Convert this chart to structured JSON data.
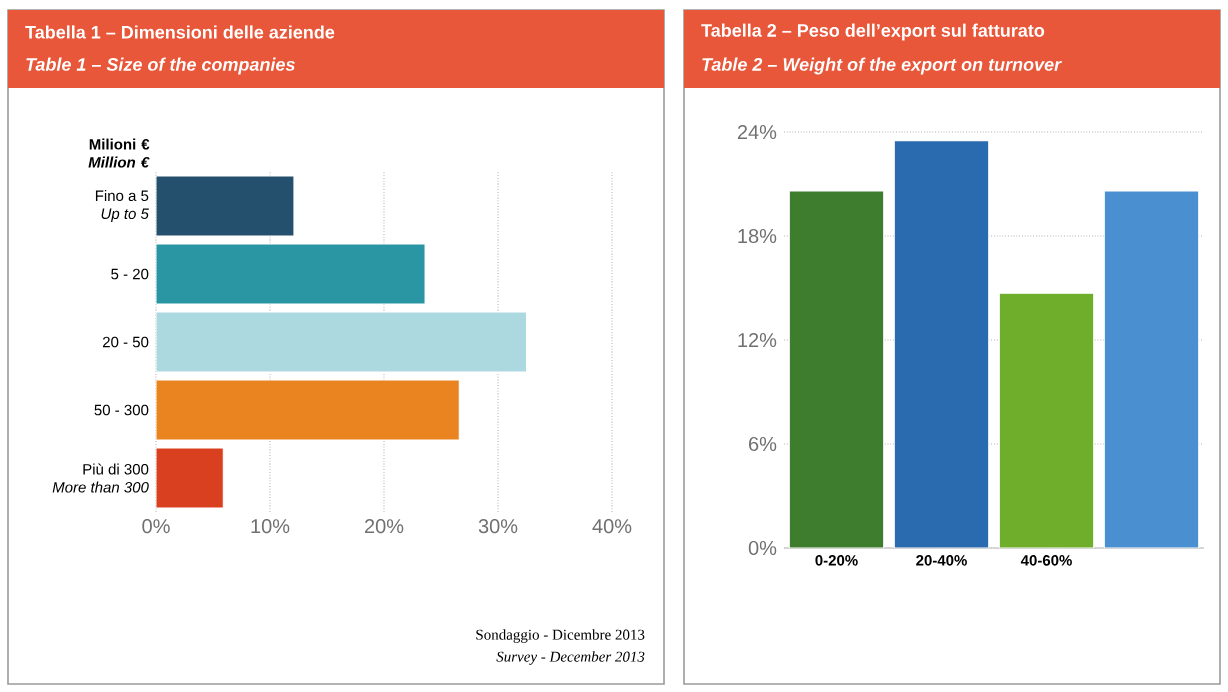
{
  "chart_data": [
    {
      "type": "bar",
      "orientation": "horizontal",
      "title": "Tabella 1 – Dimensioni delle aziende",
      "subtitle": "*Table 1 – Size of the companies*",
      "ylabel": "Milioni € *Million €*",
      "categories": [
        "Fino a 5 *Up to 5*",
        "5 - 20",
        "20 - 50",
        "50 - 300",
        "Più di 300 *More than 300*"
      ],
      "values": [
        12.1,
        23.6,
        32.5,
        26.6,
        5.9
      ],
      "colors": [
        "#24506e",
        "#2a96a3",
        "#acd8e0",
        "#e98420",
        "#d9401f"
      ],
      "xlim": [
        0,
        40
      ],
      "xticks": [
        {
          "value": 0,
          "label": "0%"
        },
        {
          "value": 10,
          "label": "10%"
        },
        {
          "value": 20,
          "label": "20%"
        },
        {
          "value": 30,
          "label": "30%"
        },
        {
          "value": 40,
          "label": "40%"
        }
      ],
      "grid": "x",
      "annotations": [
        "Sondaggio - Dicembre 2013",
        "*Survey - December 2013*"
      ]
    },
    {
      "type": "bar",
      "title": "Tabella 2 – Peso dell’export sul fatturato",
      "subtitle": "*Table 2 – Weight of the export on turnover*",
      "categories": [
        "0-20%",
        "20-40%",
        "40-60%",
        null
      ],
      "values": [
        20.6,
        23.5,
        14.7,
        20.6
      ],
      "colors": [
        "#3f7d2e",
        "#2a6aae",
        "#6fae2b",
        "#4a8fd0"
      ],
      "ylim": [
        0,
        24
      ],
      "yticks": [
        {
          "value": 0,
          "label": "0%"
        },
        {
          "value": 6,
          "label": "6%"
        },
        {
          "value": 12,
          "label": "12%"
        },
        {
          "value": 18,
          "label": "18%"
        },
        {
          "value": 24,
          "label": "24%"
        }
      ],
      "grid": "y"
    }
  ]
}
